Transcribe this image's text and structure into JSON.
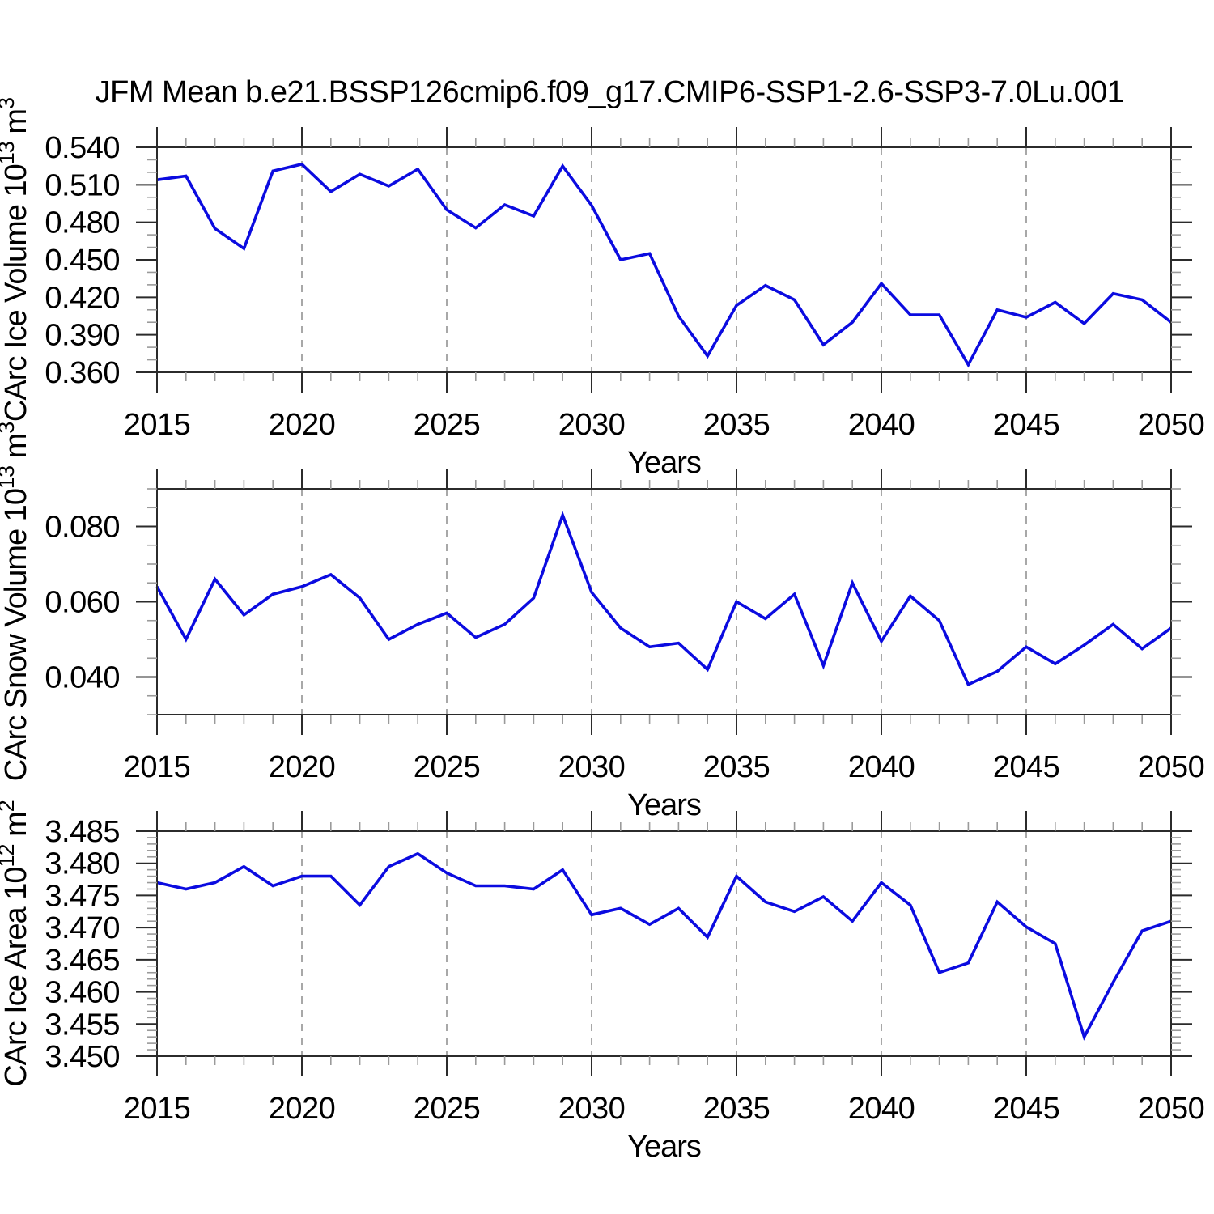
{
  "title": "JFM Mean b.e21.BSSP126cmip6.f09_g17.CMIP6-SSP1-2.6-SSP3-7.0Lu.001",
  "colors": {
    "background": "#ffffff",
    "line": "#0b0be0",
    "axis": "#2b2b2b",
    "minor_tick": "#9a9a9a",
    "gridline": "#9e9e9e",
    "text": "#000000"
  },
  "chart_data": {
    "type": "line",
    "xlabel": "Years",
    "xlim": [
      2015,
      2050
    ],
    "xticks_major": [
      2015,
      2020,
      2025,
      2030,
      2035,
      2040,
      2045,
      2050
    ],
    "xminor_step": 1,
    "x_gridlines": [
      2020,
      2025,
      2030,
      2035,
      2040,
      2045
    ],
    "grid_style": "vertical-dashed",
    "legend": null,
    "x_years": [
      2015,
      2016,
      2017,
      2018,
      2019,
      2020,
      2021,
      2022,
      2023,
      2024,
      2025,
      2026,
      2027,
      2028,
      2029,
      2030,
      2031,
      2032,
      2033,
      2034,
      2035,
      2036,
      2037,
      2038,
      2039,
      2040,
      2041,
      2042,
      2043,
      2044,
      2045,
      2046,
      2047,
      2048,
      2049,
      2050
    ],
    "panels": [
      {
        "id": "carc-ice-volume",
        "ylabel_text": "CArc Ice Volume 10^13 m^3",
        "ylabel_parts": [
          {
            "text": "CArc Ice Volume 10"
          },
          {
            "text": "13",
            "sup": true
          },
          {
            "text": " m"
          },
          {
            "text": "3",
            "sup": true
          }
        ],
        "ylim": [
          0.36,
          0.54
        ],
        "yticks": [
          0.36,
          0.39,
          0.42,
          0.45,
          0.48,
          0.51,
          0.54
        ],
        "yminor_step": 0.01,
        "ytick_decimals": 3,
        "values": [
          0.514,
          0.517,
          0.475,
          0.459,
          0.521,
          0.5265,
          0.5045,
          0.5185,
          0.509,
          0.5225,
          0.49,
          0.4755,
          0.494,
          0.485,
          0.525,
          0.4935,
          0.45,
          0.455,
          0.405,
          0.373,
          0.4135,
          0.4295,
          0.418,
          0.382,
          0.4,
          0.431,
          0.406,
          0.406,
          0.366,
          0.41,
          0.404,
          0.416,
          0.399,
          0.423,
          0.418,
          0.4
        ]
      },
      {
        "id": "carc-snow-volume",
        "ylabel_text": "CArc Snow Volume 10^13 m^3",
        "ylabel_parts": [
          {
            "text": "CArc Snow Volume 10"
          },
          {
            "text": "13",
            "sup": true
          },
          {
            "text": " m"
          },
          {
            "text": "3",
            "sup": true
          }
        ],
        "ylim": [
          0.03,
          0.09
        ],
        "yticks": [
          0.04,
          0.06,
          0.08
        ],
        "yminor_step": 0.005,
        "ytick_decimals": 3,
        "values": [
          0.064,
          0.05,
          0.066,
          0.0565,
          0.062,
          0.064,
          0.0672,
          0.061,
          0.05,
          0.054,
          0.057,
          0.0505,
          0.054,
          0.061,
          0.083,
          0.0625,
          0.053,
          0.048,
          0.049,
          0.042,
          0.06,
          0.0555,
          0.062,
          0.043,
          0.065,
          0.0495,
          0.0615,
          0.055,
          0.038,
          0.0415,
          0.048,
          0.0435,
          0.0485,
          0.054,
          0.0475,
          0.053
        ]
      },
      {
        "id": "carc-ice-area",
        "ylabel_text": "CArc Ice Area 10^12 m^2",
        "ylabel_parts": [
          {
            "text": "CArc Ice Area 10"
          },
          {
            "text": "12",
            "sup": true
          },
          {
            "text": " m"
          },
          {
            "text": "2",
            "sup": true
          }
        ],
        "ylim": [
          3.45,
          3.485
        ],
        "yticks": [
          3.45,
          3.455,
          3.46,
          3.465,
          3.47,
          3.475,
          3.48,
          3.485
        ],
        "yminor_step": 0.001,
        "ytick_decimals": 3,
        "values": [
          3.477,
          3.476,
          3.477,
          3.4795,
          3.4765,
          3.478,
          3.478,
          3.4735,
          3.4795,
          3.4815,
          3.4785,
          3.4765,
          3.4765,
          3.476,
          3.479,
          3.472,
          3.473,
          3.4705,
          3.473,
          3.4685,
          3.478,
          3.474,
          3.4725,
          3.4748,
          3.471,
          3.477,
          3.4735,
          3.463,
          3.4645,
          3.474,
          3.4701,
          3.4675,
          3.453,
          3.4615,
          3.4695,
          3.471
        ]
      }
    ]
  }
}
